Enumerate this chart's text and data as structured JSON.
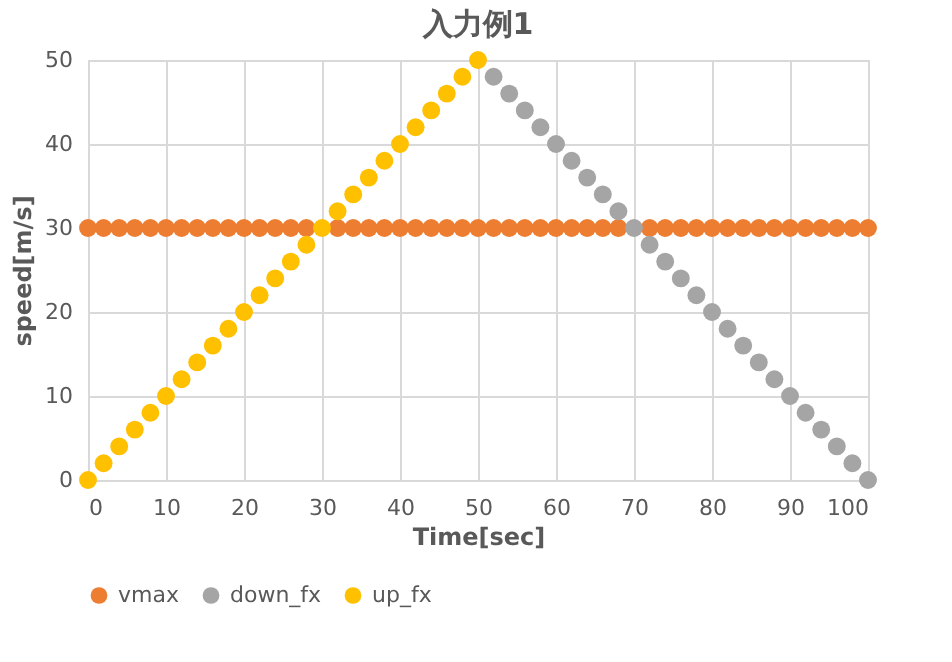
{
  "chart_data": {
    "type": "scatter",
    "title": "入力例1",
    "xlabel": "Time[sec]",
    "ylabel": "speed[m/s]",
    "xlim": [
      0,
      100
    ],
    "xticks": [
      0,
      10,
      20,
      30,
      40,
      50,
      60,
      70,
      80,
      90,
      100
    ],
    "ylim": [
      0,
      50
    ],
    "yticks": [
      0,
      10,
      20,
      30,
      40,
      50
    ],
    "grid": true,
    "legend": "bottom",
    "marker": "circle",
    "series": [
      {
        "name": "vmax",
        "color": "#ed7d31",
        "x": [
          0,
          2,
          4,
          6,
          8,
          10,
          12,
          14,
          16,
          18,
          20,
          22,
          24,
          26,
          28,
          30,
          32,
          34,
          36,
          38,
          40,
          42,
          44,
          46,
          48,
          50,
          52,
          54,
          56,
          58,
          60,
          62,
          64,
          66,
          68,
          70,
          72,
          74,
          76,
          78,
          80,
          82,
          84,
          86,
          88,
          90,
          92,
          94,
          96,
          98,
          100
        ],
        "values": [
          30,
          30,
          30,
          30,
          30,
          30,
          30,
          30,
          30,
          30,
          30,
          30,
          30,
          30,
          30,
          null,
          30,
          30,
          30,
          30,
          30,
          30,
          30,
          30,
          30,
          30,
          30,
          30,
          30,
          30,
          30,
          30,
          30,
          30,
          30,
          null,
          30,
          30,
          30,
          30,
          30,
          30,
          30,
          30,
          30,
          30,
          30,
          30,
          30,
          30,
          30
        ]
      },
      {
        "name": "down_fx",
        "color": "#a5a5a5",
        "x": [
          52,
          54,
          56,
          58,
          60,
          62,
          64,
          66,
          68,
          70,
          72,
          74,
          76,
          78,
          80,
          82,
          84,
          86,
          88,
          90,
          92,
          94,
          96,
          98,
          100
        ],
        "values": [
          48,
          46,
          44,
          42,
          40,
          38,
          36,
          34,
          32,
          30,
          28,
          26,
          24,
          22,
          20,
          18,
          16,
          14,
          12,
          10,
          8,
          6,
          4,
          2,
          0
        ]
      },
      {
        "name": "up_fx",
        "color": "#ffc000",
        "x": [
          0,
          2,
          4,
          6,
          8,
          10,
          12,
          14,
          16,
          18,
          20,
          22,
          24,
          26,
          28,
          30,
          32,
          34,
          36,
          38,
          40,
          42,
          44,
          46,
          48,
          50
        ],
        "values": [
          0,
          2,
          4,
          6,
          8,
          10,
          12,
          14,
          16,
          18,
          20,
          22,
          24,
          26,
          28,
          30,
          32,
          34,
          36,
          38,
          40,
          42,
          44,
          46,
          48,
          50
        ]
      }
    ]
  }
}
